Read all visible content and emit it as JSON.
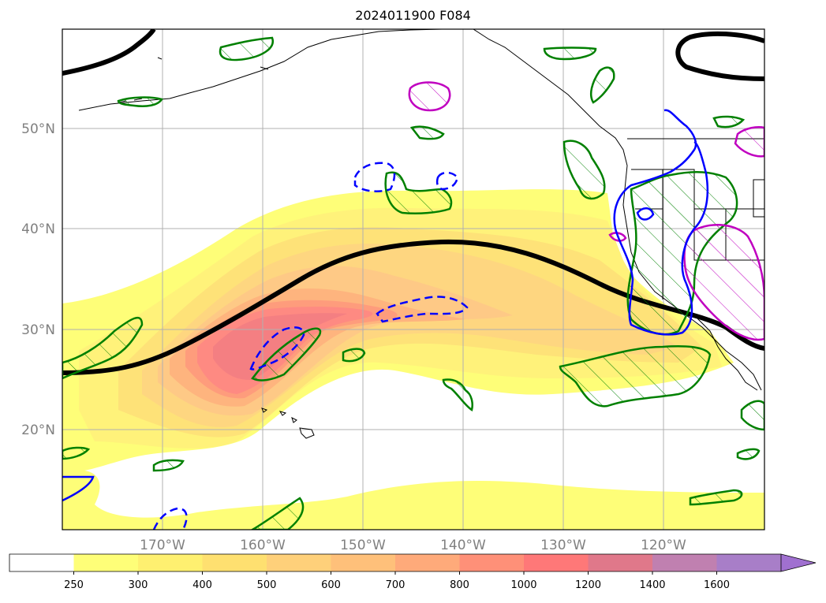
{
  "title": "2024011900 F084",
  "map": {
    "lat_labels": [
      "50°N",
      "40°N",
      "30°N",
      "20°N"
    ],
    "lon_labels": [
      "170°W",
      "160°W",
      "150°W",
      "140°W",
      "130°W",
      "120°W"
    ]
  },
  "colorbar": {
    "ticks": [
      "250",
      "300",
      "400",
      "500",
      "600",
      "700",
      "800",
      "1000",
      "1200",
      "1400",
      "1600"
    ],
    "colors": [
      "#ffffff",
      "#fefe78",
      "#fef070",
      "#fee070",
      "#fed07a",
      "#fec07a",
      "#feaa7a",
      "#fe9078",
      "#fe7878",
      "#e0788a",
      "#c080b0",
      "#a87ec8"
    ],
    "extend": "max"
  },
  "colors": {
    "trough_line": "#000000",
    "green_contour": "#008000",
    "blue_contour": "#0000ff",
    "magenta_contour": "#c000c0",
    "grid": "#b0b0b0"
  }
}
